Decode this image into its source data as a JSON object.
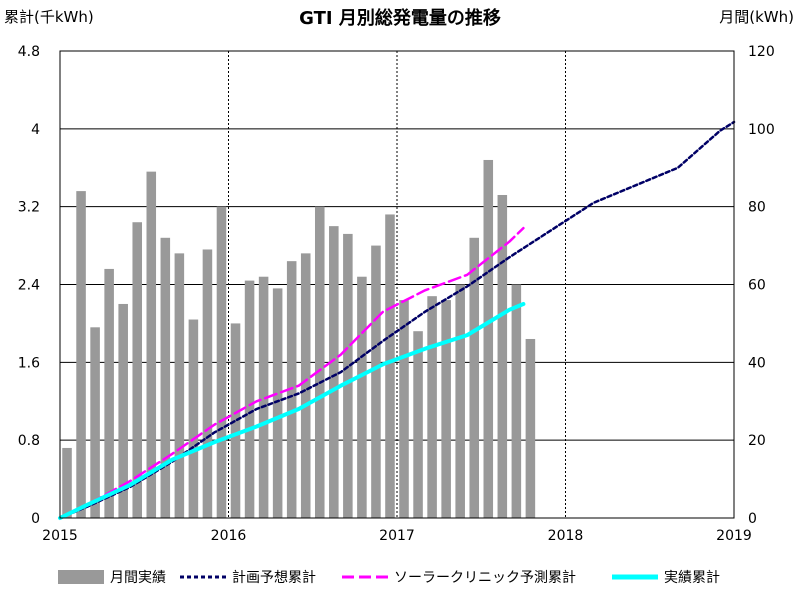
{
  "chart_data": {
    "type": "bar",
    "title": "GTI 月別総発電量の推移",
    "ylabel_left": "累計(千kWh)",
    "ylabel_right": "月間(kWh)",
    "x_ticks": [
      "2015",
      "2016",
      "2017",
      "2018",
      "2019"
    ],
    "y_left_ticks": [
      "0",
      "0.8",
      "1.6",
      "2.4",
      "3.2",
      "4",
      "4.8"
    ],
    "y_right_ticks": [
      "0",
      "20",
      "40",
      "60",
      "80",
      "100",
      "120"
    ],
    "ylim_left": [
      0,
      4.8
    ],
    "ylim_right": [
      0,
      120
    ],
    "xlim": [
      "2015-01",
      "2019-01"
    ],
    "grid": true,
    "legend_position": "bottom",
    "bar_series": {
      "name": "月間実績",
      "axis": "right",
      "color": "#999999",
      "months": [
        "2015-01",
        "2015-02",
        "2015-03",
        "2015-04",
        "2015-05",
        "2015-06",
        "2015-07",
        "2015-08",
        "2015-09",
        "2015-10",
        "2015-11",
        "2015-12",
        "2016-01",
        "2016-02",
        "2016-03",
        "2016-04",
        "2016-05",
        "2016-06",
        "2016-07",
        "2016-08",
        "2016-09",
        "2016-10",
        "2016-11",
        "2016-12",
        "2017-01",
        "2017-02",
        "2017-03",
        "2017-04",
        "2017-05",
        "2017-06",
        "2017-07",
        "2017-08",
        "2017-09",
        "2017-10"
      ],
      "values": [
        18,
        84,
        49,
        64,
        55,
        76,
        89,
        72,
        68,
        51,
        69,
        80,
        50,
        61,
        62,
        59,
        66,
        68,
        80,
        75,
        73,
        62,
        70,
        78,
        56,
        48,
        57,
        56,
        60,
        72,
        92,
        83,
        60,
        46
      ]
    },
    "line_series": [
      {
        "name": "計画予想累計",
        "axis": "left",
        "color": "#000066",
        "style": "dotted",
        "points": [
          [
            "2015-01",
            0
          ],
          [
            "2015-03",
            0.12
          ],
          [
            "2015-06",
            0.32
          ],
          [
            "2015-09",
            0.58
          ],
          [
            "2015-12",
            0.88
          ],
          [
            "2016-03",
            1.12
          ],
          [
            "2016-06",
            1.28
          ],
          [
            "2016-09",
            1.5
          ],
          [
            "2016-12",
            1.82
          ],
          [
            "2017-03",
            2.12
          ],
          [
            "2017-06",
            2.38
          ],
          [
            "2017-09",
            2.68
          ],
          [
            "2017-12",
            2.96
          ],
          [
            "2018-03",
            3.24
          ],
          [
            "2018-06",
            3.42
          ],
          [
            "2018-09",
            3.6
          ],
          [
            "2018-12",
            3.98
          ],
          [
            "2019-01",
            4.07
          ]
        ]
      },
      {
        "name": "ソーラークリニック予測累計",
        "axis": "left",
        "color": "#ff00ff",
        "style": "dashed",
        "points": [
          [
            "2015-01",
            0
          ],
          [
            "2015-03",
            0.14
          ],
          [
            "2015-06",
            0.38
          ],
          [
            "2015-09",
            0.66
          ],
          [
            "2015-12",
            0.96
          ],
          [
            "2016-03",
            1.2
          ],
          [
            "2016-06",
            1.36
          ],
          [
            "2016-09",
            1.68
          ],
          [
            "2016-12",
            2.12
          ],
          [
            "2017-03",
            2.34
          ],
          [
            "2017-06",
            2.5
          ],
          [
            "2017-09",
            2.84
          ],
          [
            "2017-10",
            2.98
          ]
        ]
      },
      {
        "name": "実績累計",
        "axis": "left",
        "color": "#00ffff",
        "style": "solid",
        "points": [
          [
            "2015-01",
            0
          ],
          [
            "2015-03",
            0.14
          ],
          [
            "2015-06",
            0.34
          ],
          [
            "2015-09",
            0.6
          ],
          [
            "2015-12",
            0.78
          ],
          [
            "2016-03",
            0.94
          ],
          [
            "2016-06",
            1.12
          ],
          [
            "2016-09",
            1.36
          ],
          [
            "2016-12",
            1.58
          ],
          [
            "2017-03",
            1.74
          ],
          [
            "2017-06",
            1.88
          ],
          [
            "2017-09",
            2.14
          ],
          [
            "2017-10",
            2.2
          ]
        ]
      }
    ]
  }
}
